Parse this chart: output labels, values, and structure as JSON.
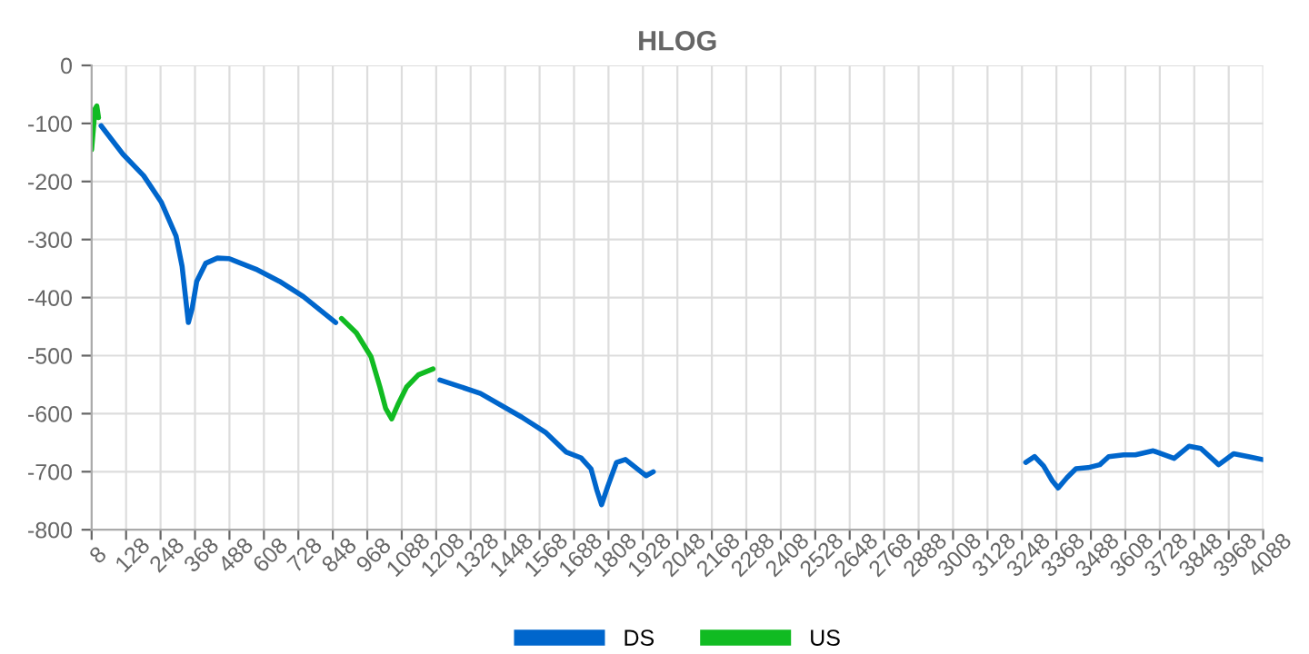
{
  "chart_data": {
    "type": "line",
    "title": "HLOG",
    "xlim": [
      8,
      4088
    ],
    "xticks": [
      8,
      128,
      248,
      368,
      488,
      608,
      728,
      848,
      968,
      1088,
      1208,
      1328,
      1448,
      1568,
      1688,
      1808,
      1928,
      2048,
      2168,
      2288,
      2408,
      2528,
      2648,
      2768,
      2888,
      3008,
      3128,
      3248,
      3368,
      3488,
      3608,
      3728,
      3848,
      3968,
      4088
    ],
    "ylim": [
      -800,
      0
    ],
    "yticks": [
      -800,
      -700,
      -600,
      -500,
      -400,
      -300,
      -200,
      -100,
      0
    ],
    "grid": true,
    "legend": "bottom",
    "marker": "none",
    "line_style": "solid",
    "series": [
      {
        "name": "DS",
        "color": "#0066cc",
        "x": [
          41,
          117,
          189,
          251,
          302,
          323,
          337,
          345,
          358,
          374,
          405,
          446,
          487,
          580,
          662,
          745,
          858,
          1040,
          1221,
          1362,
          1506,
          1588,
          1660,
          1712,
          1747,
          1767,
          1784,
          1805,
          1836,
          1867,
          1908,
          1939,
          1964,
          2600,
          3261,
          3292,
          3323,
          3354,
          3374,
          3405,
          3436,
          3478,
          3519,
          3550,
          3602,
          3643,
          3705,
          3778,
          3830,
          3871,
          3933,
          3985,
          4037,
          4085
        ],
        "values": [
          -104,
          -153,
          -190,
          -236,
          -294,
          -346,
          -408,
          -443,
          -419,
          -372,
          -341,
          -332,
          -333,
          -351,
          -372,
          -398,
          -443,
          null,
          -542,
          -565,
          -606,
          -632,
          -666,
          -676,
          -695,
          -731,
          -757,
          -726,
          -684,
          -679,
          -695,
          -707,
          -700,
          null,
          -684,
          -674,
          -690,
          -716,
          -728,
          -710,
          -695,
          -693,
          -688,
          -674,
          -671,
          -671,
          -664,
          -677,
          -656,
          -660,
          -688,
          -669,
          -674,
          -679
        ]
      },
      {
        "name": "US",
        "color": "#11bb22",
        "x": [
          8,
          14,
          20,
          26,
          32,
          450,
          878,
          930,
          981,
          1012,
          1032,
          1053,
          1074,
          1105,
          1146,
          1197
        ],
        "values": [
          -145,
          -110,
          -75,
          -70,
          -90,
          null,
          -436,
          -461,
          -502,
          -554,
          -591,
          -609,
          -585,
          -554,
          -533,
          -523
        ]
      }
    ]
  }
}
